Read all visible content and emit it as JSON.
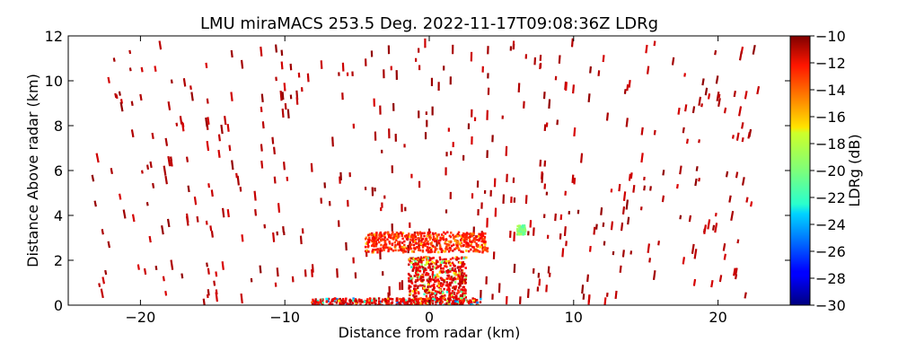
{
  "chart_data": {
    "type": "heatmap",
    "title": "LMU miraMACS 253.5 Deg. 2022-11-17T09:08:36Z  LDRg",
    "xlabel": "Distance from radar (km)",
    "ylabel": "Distance Above radar  (km)",
    "xlim": [
      -25,
      25
    ],
    "ylim": [
      0,
      12
    ],
    "xticks": [
      -20,
      -10,
      0,
      10,
      20
    ],
    "yticks": [
      0,
      2,
      4,
      6,
      8,
      10,
      12
    ],
    "colorbar": {
      "label": "LDRg (dB)",
      "range": [
        -30,
        -10
      ],
      "ticks": [
        -10,
        -12,
        -14,
        -16,
        -18,
        -20,
        -22,
        -24,
        -26,
        -28,
        -30
      ],
      "colormap": "jet"
    },
    "scan_elevation_deg": 253.5,
    "timestamp": "2022-11-17T09:08:36Z",
    "clusters": [
      {
        "name": "melting-layer-echo",
        "x_range": [
          -4.5,
          4.0
        ],
        "y_range": [
          2.4,
          3.3
        ],
        "ldr_mean": -12,
        "ldr_min": -17
      },
      {
        "name": "ground-clutter",
        "x_range": [
          -8.2,
          3.5
        ],
        "y_range": [
          0.0,
          0.35
        ],
        "ldr_mean": -11,
        "ldr_min": -26
      },
      {
        "name": "low-level-echo",
        "x_range": [
          -1.5,
          2.5
        ],
        "y_range": [
          0.3,
          2.2
        ],
        "ldr_mean": -11,
        "ldr_min": -22
      },
      {
        "name": "isolated-cell-east",
        "x_range": [
          6.0,
          6.6
        ],
        "y_range": [
          3.2,
          3.6
        ],
        "ldr_mean": -19,
        "ldr_min": -21
      }
    ]
  }
}
